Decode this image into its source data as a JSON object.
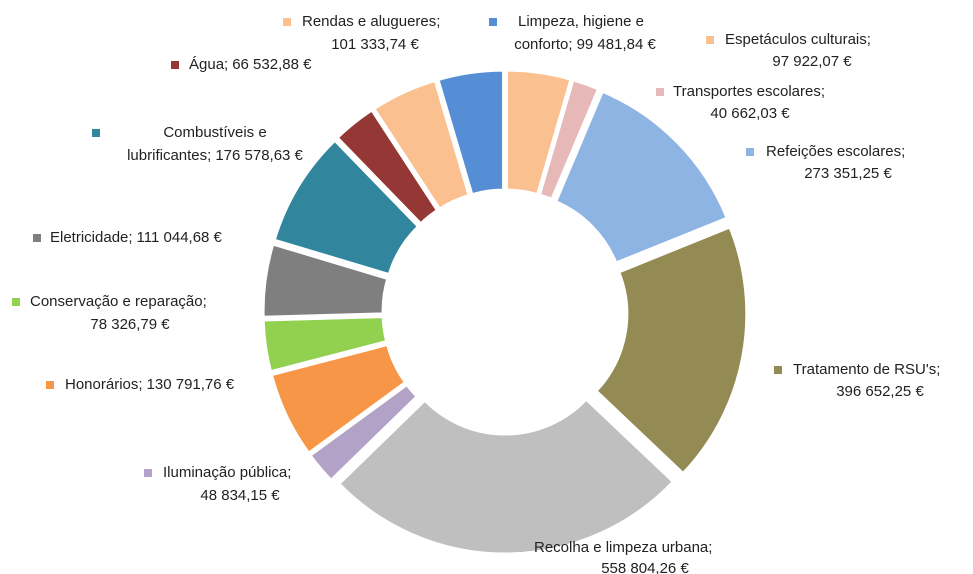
{
  "chart_data": {
    "type": "donut",
    "categories": [
      "Espetáculos culturais;",
      "Transportes escolares;",
      "Refeições escolares;",
      "Tratamento de RSU's;",
      "Recolha e limpeza urbana;",
      "Iluminação pública;",
      "Honorários;",
      "Conservação e reparação;",
      "Eletricidade;",
      "Combustíveis e lubrificantes;",
      "Água;",
      "Rendas e alugueres;",
      "Limpeza, higiene e conforto;"
    ],
    "values": [
      97922.07,
      40662.03,
      273351.25,
      396652.25,
      558804.26,
      48834.15,
      130791.76,
      78326.79,
      111044.68,
      176578.63,
      66532.88,
      101333.74,
      99481.84
    ],
    "value_labels": [
      "97 922,07 €",
      "40 662,03 €",
      "273 351,25 €",
      "396 652,25 €",
      "558 804,26 €",
      "48 834,15 €",
      "130 791,76 €",
      "78 326,79 €",
      "111 044,68 €",
      "176 578,63 €",
      "66 532,88 €",
      "101 333,74 €",
      "99 481,84 €"
    ],
    "colors": [
      "#fac090",
      "#e6b9b8",
      "#8eb4e3",
      "#948a54",
      "#bfbfbf",
      "#b3a2c7",
      "#f79646",
      "#92d050",
      "#7f7f7f",
      "#31859c",
      "#953735",
      "#fac090",
      "#558ed5"
    ]
  }
}
